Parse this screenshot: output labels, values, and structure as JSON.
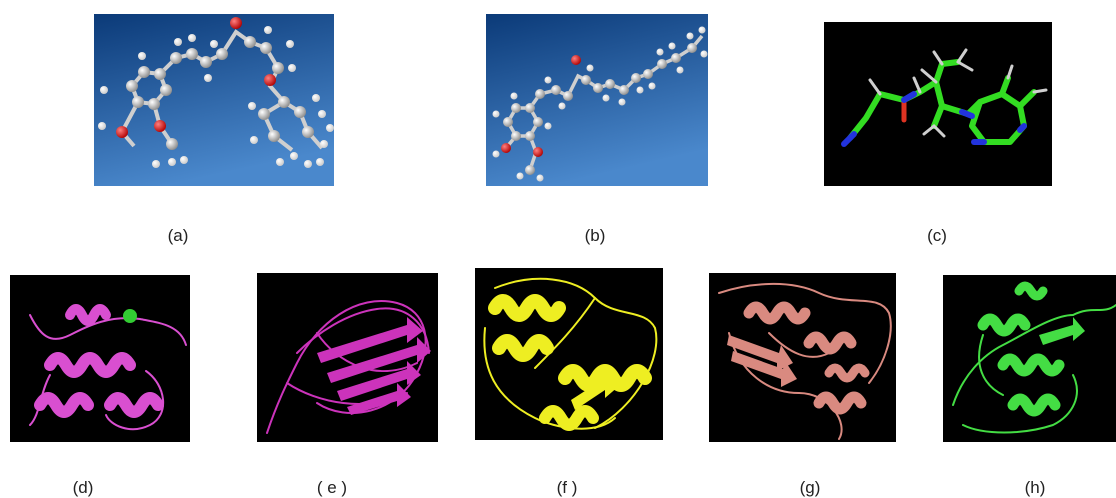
{
  "captions": {
    "a": "(a)",
    "b": "(b)",
    "c": "(c)",
    "d": "(d)",
    "e": "( e )",
    "f": "(f )",
    "g": "(g)",
    "h": "(h)"
  },
  "colors": {
    "molecule_bg_top": "#0b3a78",
    "molecule_bg_bottom": "#3f7fc4",
    "atom_carbon": "#b8b8b8",
    "atom_hydrogen": "#f2f2f2",
    "atom_oxygen": "#d41818",
    "stick_green": "#33dd22",
    "stick_blue": "#2233dd",
    "protein_d": "#d94fd0",
    "protein_e": "#cc33bb",
    "protein_f": "#eeee22",
    "protein_g": "#d98a80",
    "protein_h": "#44dd44",
    "ion_green": "#33cc33"
  }
}
